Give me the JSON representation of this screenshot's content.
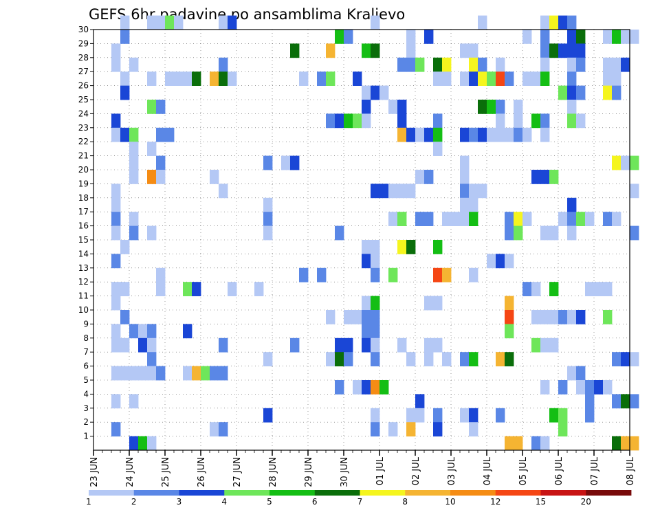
{
  "chart_data": {
    "type": "heatmap",
    "title": "GEFS 6hr padavine po ansamblima Kraljevo",
    "y_ticks": [
      "1",
      "2",
      "3",
      "4",
      "5",
      "6",
      "7",
      "8",
      "9",
      "10",
      "11",
      "12",
      "13",
      "14",
      "15",
      "16",
      "17",
      "18",
      "19",
      "20",
      "21",
      "22",
      "23",
      "24",
      "25",
      "26",
      "27",
      "28",
      "29",
      "30"
    ],
    "x_ticks": [
      "23 JUN",
      "24 JUN",
      "25 JUN",
      "26 JUN",
      "27 JUN",
      "28 JUN",
      "29 JUN",
      "30 JUN",
      "01 JUL",
      "02 JUL",
      "03 JUL",
      "04 JUL",
      "05 JUL",
      "06 JUL",
      "07 JUL",
      "08 JUL"
    ],
    "x_steps_per_day": 4,
    "x_range_steps": [
      0,
      60
    ],
    "y_range_members": [
      0,
      30
    ],
    "grid": "dotted",
    "legend": {
      "placement": "bottom",
      "labels": [
        "1",
        "2",
        "3",
        "4",
        "5",
        "6",
        "7",
        "8",
        "10",
        "12",
        "15",
        "20"
      ],
      "colors": [
        "#b4c8f5",
        "#5a87e6",
        "#1a46d6",
        "#6ee65a",
        "#14be14",
        "#0a6e0a",
        "#f5f51e",
        "#f5b432",
        "#f58c14",
        "#f54614",
        "#c81414",
        "#780a0a"
      ]
    },
    "value_thresholds": [
      1,
      2,
      3,
      4,
      5,
      6,
      7,
      8,
      10,
      12,
      15,
      20
    ],
    "cells": [
      [
        30,
        3,
        1
      ],
      [
        30,
        6,
        1
      ],
      [
        30,
        7,
        1
      ],
      [
        30,
        8,
        4
      ],
      [
        30,
        9,
        1
      ],
      [
        30,
        14,
        1
      ],
      [
        30,
        15,
        3
      ],
      [
        30,
        31,
        1
      ],
      [
        30,
        43,
        1
      ],
      [
        30,
        50,
        1
      ],
      [
        30,
        51,
        7
      ],
      [
        30,
        52,
        3
      ],
      [
        30,
        53,
        2
      ],
      [
        29,
        3,
        2
      ],
      [
        29,
        27,
        5
      ],
      [
        29,
        28,
        2
      ],
      [
        29,
        35,
        1
      ],
      [
        29,
        37,
        3
      ],
      [
        29,
        48,
        1
      ],
      [
        29,
        50,
        2
      ],
      [
        29,
        53,
        3
      ],
      [
        29,
        54,
        6
      ],
      [
        29,
        57,
        1
      ],
      [
        29,
        58,
        5
      ],
      [
        29,
        59,
        1
      ],
      [
        29,
        60,
        1
      ],
      [
        28,
        2,
        1
      ],
      [
        28,
        22,
        6
      ],
      [
        28,
        26,
        8
      ],
      [
        28,
        30,
        5
      ],
      [
        28,
        31,
        6
      ],
      [
        28,
        35,
        1
      ],
      [
        28,
        41,
        1
      ],
      [
        28,
        42,
        1
      ],
      [
        28,
        50,
        2
      ],
      [
        28,
        51,
        6
      ],
      [
        28,
        52,
        3
      ],
      [
        28,
        53,
        3
      ],
      [
        28,
        54,
        3
      ],
      [
        27,
        2,
        1
      ],
      [
        27,
        4,
        1
      ],
      [
        27,
        14,
        2
      ],
      [
        27,
        34,
        2
      ],
      [
        27,
        35,
        2
      ],
      [
        27,
        36,
        4
      ],
      [
        27,
        38,
        6
      ],
      [
        27,
        39,
        7
      ],
      [
        27,
        42,
        7
      ],
      [
        27,
        43,
        2
      ],
      [
        27,
        45,
        1
      ],
      [
        27,
        50,
        1
      ],
      [
        27,
        53,
        1
      ],
      [
        27,
        54,
        2
      ],
      [
        27,
        57,
        1
      ],
      [
        27,
        58,
        1
      ],
      [
        27,
        59,
        3
      ],
      [
        26,
        3,
        1
      ],
      [
        26,
        6,
        1
      ],
      [
        26,
        8,
        1
      ],
      [
        26,
        9,
        1
      ],
      [
        26,
        10,
        1
      ],
      [
        26,
        11,
        6
      ],
      [
        26,
        13,
        8
      ],
      [
        26,
        14,
        6
      ],
      [
        26,
        15,
        1
      ],
      [
        26,
        23,
        1
      ],
      [
        26,
        25,
        2
      ],
      [
        26,
        26,
        4
      ],
      [
        26,
        29,
        3
      ],
      [
        26,
        38,
        1
      ],
      [
        26,
        39,
        1
      ],
      [
        26,
        41,
        1
      ],
      [
        26,
        42,
        3
      ],
      [
        26,
        43,
        7
      ],
      [
        26,
        44,
        4
      ],
      [
        26,
        45,
        13
      ],
      [
        26,
        46,
        2
      ],
      [
        26,
        48,
        1
      ],
      [
        26,
        49,
        1
      ],
      [
        26,
        50,
        5
      ],
      [
        26,
        53,
        2
      ],
      [
        26,
        57,
        1
      ],
      [
        26,
        58,
        1
      ],
      [
        25,
        3,
        3
      ],
      [
        25,
        30,
        1
      ],
      [
        25,
        31,
        3
      ],
      [
        25,
        32,
        1
      ],
      [
        25,
        52,
        4
      ],
      [
        25,
        53,
        3
      ],
      [
        25,
        54,
        2
      ],
      [
        25,
        57,
        7
      ],
      [
        25,
        58,
        2
      ],
      [
        24,
        6,
        4
      ],
      [
        24,
        7,
        2
      ],
      [
        24,
        30,
        3
      ],
      [
        24,
        33,
        1
      ],
      [
        24,
        34,
        3
      ],
      [
        24,
        43,
        6
      ],
      [
        24,
        44,
        5
      ],
      [
        24,
        45,
        2
      ],
      [
        24,
        47,
        1
      ],
      [
        24,
        53,
        1
      ],
      [
        23,
        2,
        3
      ],
      [
        23,
        26,
        2
      ],
      [
        23,
        27,
        3
      ],
      [
        23,
        28,
        5
      ],
      [
        23,
        29,
        4
      ],
      [
        23,
        30,
        1
      ],
      [
        23,
        34,
        3
      ],
      [
        23,
        38,
        2
      ],
      [
        23,
        45,
        1
      ],
      [
        23,
        47,
        1
      ],
      [
        23,
        49,
        5
      ],
      [
        23,
        50,
        2
      ],
      [
        23,
        53,
        4
      ],
      [
        23,
        54,
        1
      ],
      [
        22,
        2,
        1
      ],
      [
        22,
        3,
        3
      ],
      [
        22,
        4,
        4
      ],
      [
        22,
        7,
        2
      ],
      [
        22,
        8,
        2
      ],
      [
        22,
        34,
        8
      ],
      [
        22,
        35,
        3
      ],
      [
        22,
        36,
        1
      ],
      [
        22,
        37,
        3
      ],
      [
        22,
        38,
        5
      ],
      [
        22,
        41,
        3
      ],
      [
        22,
        42,
        2
      ],
      [
        22,
        43,
        3
      ],
      [
        22,
        44,
        1
      ],
      [
        22,
        45,
        1
      ],
      [
        22,
        46,
        1
      ],
      [
        22,
        47,
        2
      ],
      [
        22,
        48,
        1
      ],
      [
        22,
        50,
        1
      ],
      [
        21,
        4,
        1
      ],
      [
        21,
        6,
        1
      ],
      [
        21,
        38,
        1
      ],
      [
        20,
        4,
        1
      ],
      [
        20,
        7,
        2
      ],
      [
        20,
        19,
        2
      ],
      [
        20,
        21,
        1
      ],
      [
        20,
        22,
        3
      ],
      [
        20,
        41,
        1
      ],
      [
        20,
        58,
        7
      ],
      [
        20,
        59,
        1
      ],
      [
        20,
        60,
        4
      ],
      [
        19,
        4,
        1
      ],
      [
        19,
        6,
        10
      ],
      [
        19,
        7,
        1
      ],
      [
        19,
        13,
        1
      ],
      [
        19,
        36,
        1
      ],
      [
        19,
        37,
        2
      ],
      [
        19,
        41,
        1
      ],
      [
        19,
        49,
        3
      ],
      [
        19,
        50,
        3
      ],
      [
        19,
        51,
        4
      ],
      [
        18,
        2,
        1
      ],
      [
        18,
        14,
        1
      ],
      [
        18,
        31,
        3
      ],
      [
        18,
        32,
        3
      ],
      [
        18,
        33,
        1
      ],
      [
        18,
        34,
        1
      ],
      [
        18,
        35,
        1
      ],
      [
        18,
        41,
        2
      ],
      [
        18,
        42,
        1
      ],
      [
        18,
        43,
        1
      ],
      [
        18,
        60,
        1
      ],
      [
        17,
        2,
        1
      ],
      [
        17,
        19,
        1
      ],
      [
        17,
        41,
        1
      ],
      [
        17,
        42,
        1
      ],
      [
        17,
        53,
        3
      ],
      [
        16,
        2,
        2
      ],
      [
        16,
        4,
        1
      ],
      [
        16,
        19,
        2
      ],
      [
        16,
        33,
        1
      ],
      [
        16,
        34,
        4
      ],
      [
        16,
        36,
        2
      ],
      [
        16,
        37,
        2
      ],
      [
        16,
        39,
        1
      ],
      [
        16,
        40,
        1
      ],
      [
        16,
        41,
        1
      ],
      [
        16,
        42,
        5
      ],
      [
        16,
        46,
        2
      ],
      [
        16,
        47,
        7
      ],
      [
        16,
        48,
        1
      ],
      [
        16,
        52,
        1
      ],
      [
        16,
        53,
        2
      ],
      [
        16,
        54,
        4
      ],
      [
        16,
        55,
        1
      ],
      [
        16,
        57,
        2
      ],
      [
        16,
        58,
        1
      ],
      [
        15,
        2,
        1
      ],
      [
        15,
        4,
        2
      ],
      [
        15,
        6,
        1
      ],
      [
        15,
        19,
        1
      ],
      [
        15,
        27,
        2
      ],
      [
        15,
        46,
        2
      ],
      [
        15,
        47,
        4
      ],
      [
        15,
        50,
        1
      ],
      [
        15,
        51,
        1
      ],
      [
        15,
        53,
        1
      ],
      [
        15,
        60,
        2
      ],
      [
        14,
        3,
        1
      ],
      [
        14,
        30,
        1
      ],
      [
        14,
        31,
        1
      ],
      [
        14,
        34,
        7
      ],
      [
        14,
        35,
        6
      ],
      [
        14,
        38,
        5
      ],
      [
        13,
        2,
        2
      ],
      [
        13,
        30,
        3
      ],
      [
        13,
        31,
        1
      ],
      [
        13,
        44,
        1
      ],
      [
        13,
        45,
        3
      ],
      [
        13,
        46,
        1
      ],
      [
        12,
        7,
        1
      ],
      [
        12,
        23,
        2
      ],
      [
        12,
        25,
        2
      ],
      [
        12,
        31,
        2
      ],
      [
        12,
        33,
        4
      ],
      [
        12,
        38,
        12
      ],
      [
        12,
        39,
        9
      ],
      [
        12,
        42,
        1
      ],
      [
        11,
        2,
        1
      ],
      [
        11,
        3,
        1
      ],
      [
        11,
        7,
        1
      ],
      [
        11,
        10,
        4
      ],
      [
        11,
        11,
        3
      ],
      [
        11,
        15,
        1
      ],
      [
        11,
        18,
        1
      ],
      [
        11,
        48,
        2
      ],
      [
        11,
        49,
        1
      ],
      [
        11,
        51,
        5
      ],
      [
        11,
        55,
        1
      ],
      [
        11,
        56,
        1
      ],
      [
        11,
        57,
        1
      ],
      [
        10,
        2,
        1
      ],
      [
        10,
        30,
        1
      ],
      [
        10,
        31,
        5
      ],
      [
        10,
        37,
        1
      ],
      [
        10,
        38,
        1
      ],
      [
        10,
        46,
        9
      ],
      [
        9,
        3,
        2
      ],
      [
        9,
        26,
        1
      ],
      [
        9,
        28,
        1
      ],
      [
        9,
        29,
        1
      ],
      [
        9,
        30,
        2
      ],
      [
        9,
        31,
        2
      ],
      [
        9,
        46,
        12
      ],
      [
        9,
        49,
        1
      ],
      [
        9,
        50,
        1
      ],
      [
        9,
        51,
        1
      ],
      [
        9,
        52,
        2
      ],
      [
        9,
        53,
        1
      ],
      [
        9,
        54,
        3
      ],
      [
        9,
        57,
        4
      ],
      [
        8,
        2,
        1
      ],
      [
        8,
        4,
        2
      ],
      [
        8,
        5,
        1
      ],
      [
        8,
        6,
        2
      ],
      [
        8,
        10,
        3
      ],
      [
        8,
        30,
        2
      ],
      [
        8,
        31,
        2
      ],
      [
        8,
        46,
        4
      ],
      [
        7,
        2,
        1
      ],
      [
        7,
        3,
        1
      ],
      [
        7,
        5,
        3
      ],
      [
        7,
        6,
        1
      ],
      [
        7,
        14,
        2
      ],
      [
        7,
        22,
        2
      ],
      [
        7,
        27,
        3
      ],
      [
        7,
        28,
        3
      ],
      [
        7,
        30,
        3
      ],
      [
        7,
        31,
        1
      ],
      [
        7,
        34,
        1
      ],
      [
        7,
        37,
        1
      ],
      [
        7,
        38,
        1
      ],
      [
        7,
        49,
        4
      ],
      [
        7,
        50,
        1
      ],
      [
        7,
        51,
        1
      ],
      [
        6,
        6,
        2
      ],
      [
        6,
        19,
        1
      ],
      [
        6,
        26,
        1
      ],
      [
        6,
        27,
        6
      ],
      [
        6,
        28,
        2
      ],
      [
        6,
        31,
        2
      ],
      [
        6,
        35,
        1
      ],
      [
        6,
        37,
        1
      ],
      [
        6,
        39,
        1
      ],
      [
        6,
        41,
        2
      ],
      [
        6,
        42,
        5
      ],
      [
        6,
        45,
        8
      ],
      [
        6,
        46,
        6
      ],
      [
        6,
        58,
        2
      ],
      [
        6,
        59,
        3
      ],
      [
        6,
        60,
        1
      ],
      [
        5,
        2,
        1
      ],
      [
        5,
        3,
        1
      ],
      [
        5,
        4,
        1
      ],
      [
        5,
        5,
        1
      ],
      [
        5,
        6,
        1
      ],
      [
        5,
        7,
        2
      ],
      [
        5,
        10,
        1
      ],
      [
        5,
        11,
        9
      ],
      [
        5,
        12,
        4
      ],
      [
        5,
        13,
        2
      ],
      [
        5,
        14,
        2
      ],
      [
        5,
        53,
        1
      ],
      [
        5,
        54,
        2
      ],
      [
        4,
        27,
        2
      ],
      [
        4,
        29,
        1
      ],
      [
        4,
        30,
        3
      ],
      [
        4,
        31,
        10
      ],
      [
        4,
        32,
        5
      ],
      [
        4,
        50,
        1
      ],
      [
        4,
        52,
        2
      ],
      [
        4,
        54,
        1
      ],
      [
        4,
        55,
        2
      ],
      [
        4,
        56,
        3
      ],
      [
        4,
        57,
        1
      ],
      [
        3,
        2,
        1
      ],
      [
        3,
        4,
        1
      ],
      [
        3,
        36,
        3
      ],
      [
        3,
        55,
        2
      ],
      [
        3,
        58,
        2
      ],
      [
        3,
        59,
        6
      ],
      [
        3,
        60,
        2
      ],
      [
        2,
        19,
        3
      ],
      [
        2,
        31,
        1
      ],
      [
        2,
        35,
        1
      ],
      [
        2,
        36,
        1
      ],
      [
        2,
        38,
        2
      ],
      [
        2,
        41,
        1
      ],
      [
        2,
        42,
        3
      ],
      [
        2,
        45,
        2
      ],
      [
        2,
        51,
        5
      ],
      [
        2,
        52,
        4
      ],
      [
        2,
        55,
        2
      ],
      [
        1,
        2,
        2
      ],
      [
        1,
        13,
        1
      ],
      [
        1,
        14,
        2
      ],
      [
        1,
        31,
        2
      ],
      [
        1,
        33,
        1
      ],
      [
        1,
        35,
        9
      ],
      [
        1,
        38,
        3
      ],
      [
        1,
        42,
        1
      ],
      [
        1,
        52,
        4
      ],
      [
        0,
        4,
        3
      ],
      [
        0,
        5,
        5
      ],
      [
        0,
        6,
        1
      ],
      [
        0,
        46,
        8
      ],
      [
        0,
        47,
        8
      ],
      [
        0,
        49,
        2
      ],
      [
        0,
        50,
        1
      ],
      [
        0,
        58,
        6
      ],
      [
        0,
        59,
        9
      ],
      [
        0,
        60,
        9
      ]
    ]
  }
}
